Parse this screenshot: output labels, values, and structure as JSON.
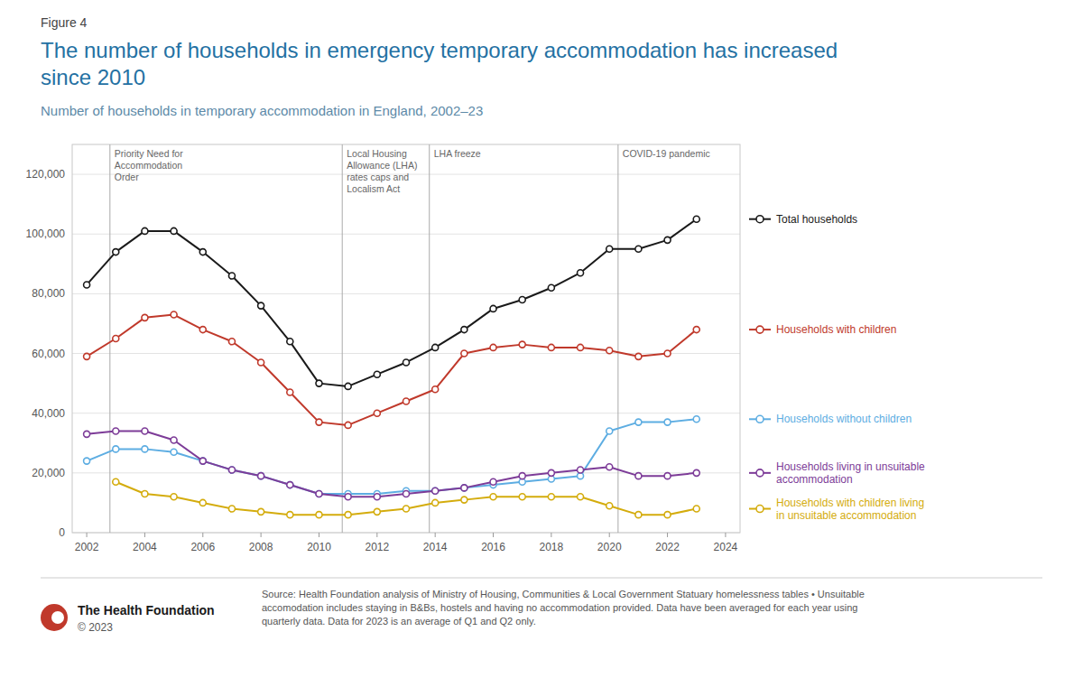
{
  "chart_data": {
    "type": "line",
    "figure_label": "Figure 4",
    "title": "The number of households in emergency temporary accommodation has increased\nsince 2010",
    "subtitle": "Number of households in temporary accommodation in England, 2002–23",
    "x": [
      2002,
      2003,
      2004,
      2005,
      2006,
      2007,
      2008,
      2009,
      2010,
      2011,
      2012,
      2013,
      2014,
      2015,
      2016,
      2017,
      2018,
      2019,
      2020,
      2021,
      2022,
      2023
    ],
    "series": [
      {
        "name": "Total households",
        "color": "#1a1a1a",
        "marker": "circle",
        "values": [
          83000,
          94000,
          101000,
          101000,
          94000,
          86000,
          76000,
          64000,
          50000,
          49000,
          53000,
          57000,
          62000,
          68000,
          75000,
          78000,
          82000,
          87000,
          95000,
          95000,
          98000,
          105000
        ]
      },
      {
        "name": "Households with children",
        "color": "#c0392b",
        "marker": "circle",
        "values": [
          59000,
          65000,
          72000,
          73000,
          68000,
          64000,
          57000,
          47000,
          37000,
          36000,
          40000,
          44000,
          48000,
          60000,
          62000,
          63000,
          62000,
          62000,
          61000,
          59000,
          60000,
          68000
        ]
      },
      {
        "name": "Households without children",
        "color": "#5dade2",
        "marker": "circle",
        "values": [
          24000,
          28000,
          28000,
          27000,
          24000,
          21000,
          19000,
          16000,
          13000,
          13000,
          13000,
          14000,
          14000,
          15000,
          16000,
          17000,
          18000,
          19000,
          34000,
          37000,
          37000,
          38000
        ]
      },
      {
        "name": "Households living in unsuitable\naccommodation",
        "color": "#7d3c98",
        "marker": "circle",
        "values": [
          33000,
          34000,
          34000,
          31000,
          24000,
          21000,
          19000,
          16000,
          13000,
          12000,
          12000,
          13000,
          14000,
          15000,
          17000,
          19000,
          20000,
          21000,
          22000,
          19000,
          19000,
          20000
        ]
      },
      {
        "name": "Households with children living\nin unsuitable accommodation",
        "color": "#d4ac0d",
        "marker": "circle",
        "values": [
          null,
          17000,
          13000,
          12000,
          10000,
          8000,
          7000,
          6000,
          6000,
          6000,
          7000,
          8000,
          10000,
          11000,
          12000,
          12000,
          12000,
          12000,
          9000,
          6000,
          6000,
          8000
        ]
      }
    ],
    "xlim": [
      2001.5,
      2024.5
    ],
    "xticks": [
      2002,
      2004,
      2006,
      2008,
      2010,
      2012,
      2014,
      2016,
      2018,
      2020,
      2022,
      2024
    ],
    "ylim": [
      0,
      130000
    ],
    "yticks": [
      0,
      {
        "value": 20000,
        "label": "20,000"
      },
      {
        "value": 40000,
        "label": "40,000"
      },
      {
        "value": 60000,
        "label": "60,000"
      },
      {
        "value": 80000,
        "label": "80,000"
      },
      {
        "value": 100000,
        "label": "100,000"
      },
      {
        "value": 120000,
        "label": "120,000"
      }
    ],
    "grid": true,
    "legend": "right",
    "annotations": [
      {
        "x": 2002.8,
        "label": "Priority Need for\nAccommodation\nOrder"
      },
      {
        "x": 2010.8,
        "label": "Local Housing\nAllowance (LHA)\nrates caps and\nLocalism Act"
      },
      {
        "x": 2013.8,
        "label": "LHA freeze"
      },
      {
        "x": 2020.3,
        "label": "COVID-19 pandemic"
      }
    ],
    "source": "Source: Health Foundation analysis of Ministry of Housing, Communities & Local Government Statuary homelessness tables • Unsuitable\naccomodation includes staying in B&Bs, hostels and having no accommodation provided. Data have been averaged for each year using\nquarterly data. Data for 2023 is an average of Q1 and Q2 only.",
    "org_name": "The Health Foundation",
    "org_year": "© 2023",
    "logo_color": "#c0392b"
  }
}
